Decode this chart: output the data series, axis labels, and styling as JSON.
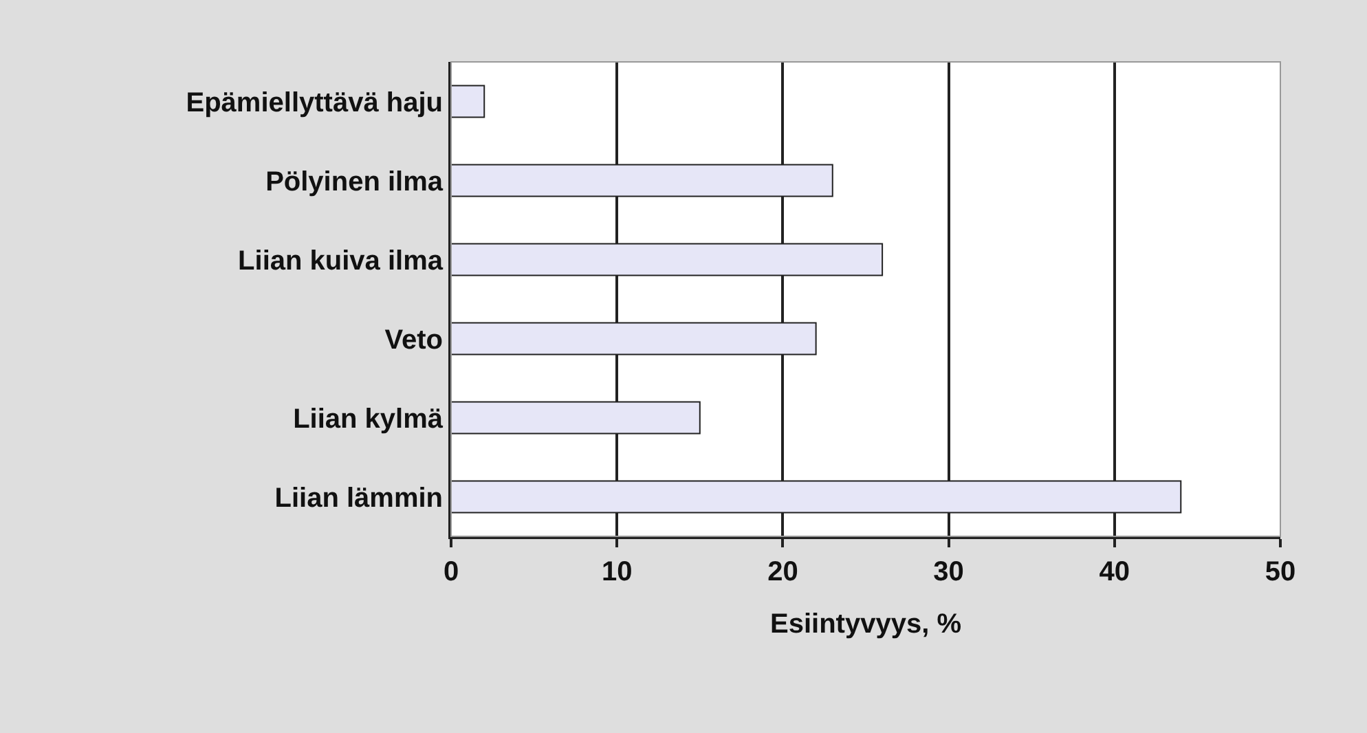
{
  "chart_data": {
    "type": "bar",
    "orientation": "horizontal",
    "categories": [
      "Epämiellyttävä haju",
      "Pölyinen ilma",
      "Liian kuiva ilma",
      "Veto",
      "Liian kylmä",
      "Liian lämmin"
    ],
    "values": [
      2,
      23,
      26,
      22,
      15,
      44
    ],
    "color": "#e6e6f7",
    "xlabel": "Esiintyvyys, %",
    "xlim": [
      0,
      50
    ],
    "xticks": [
      0,
      10,
      20,
      30,
      40,
      50
    ],
    "grid": "x"
  }
}
